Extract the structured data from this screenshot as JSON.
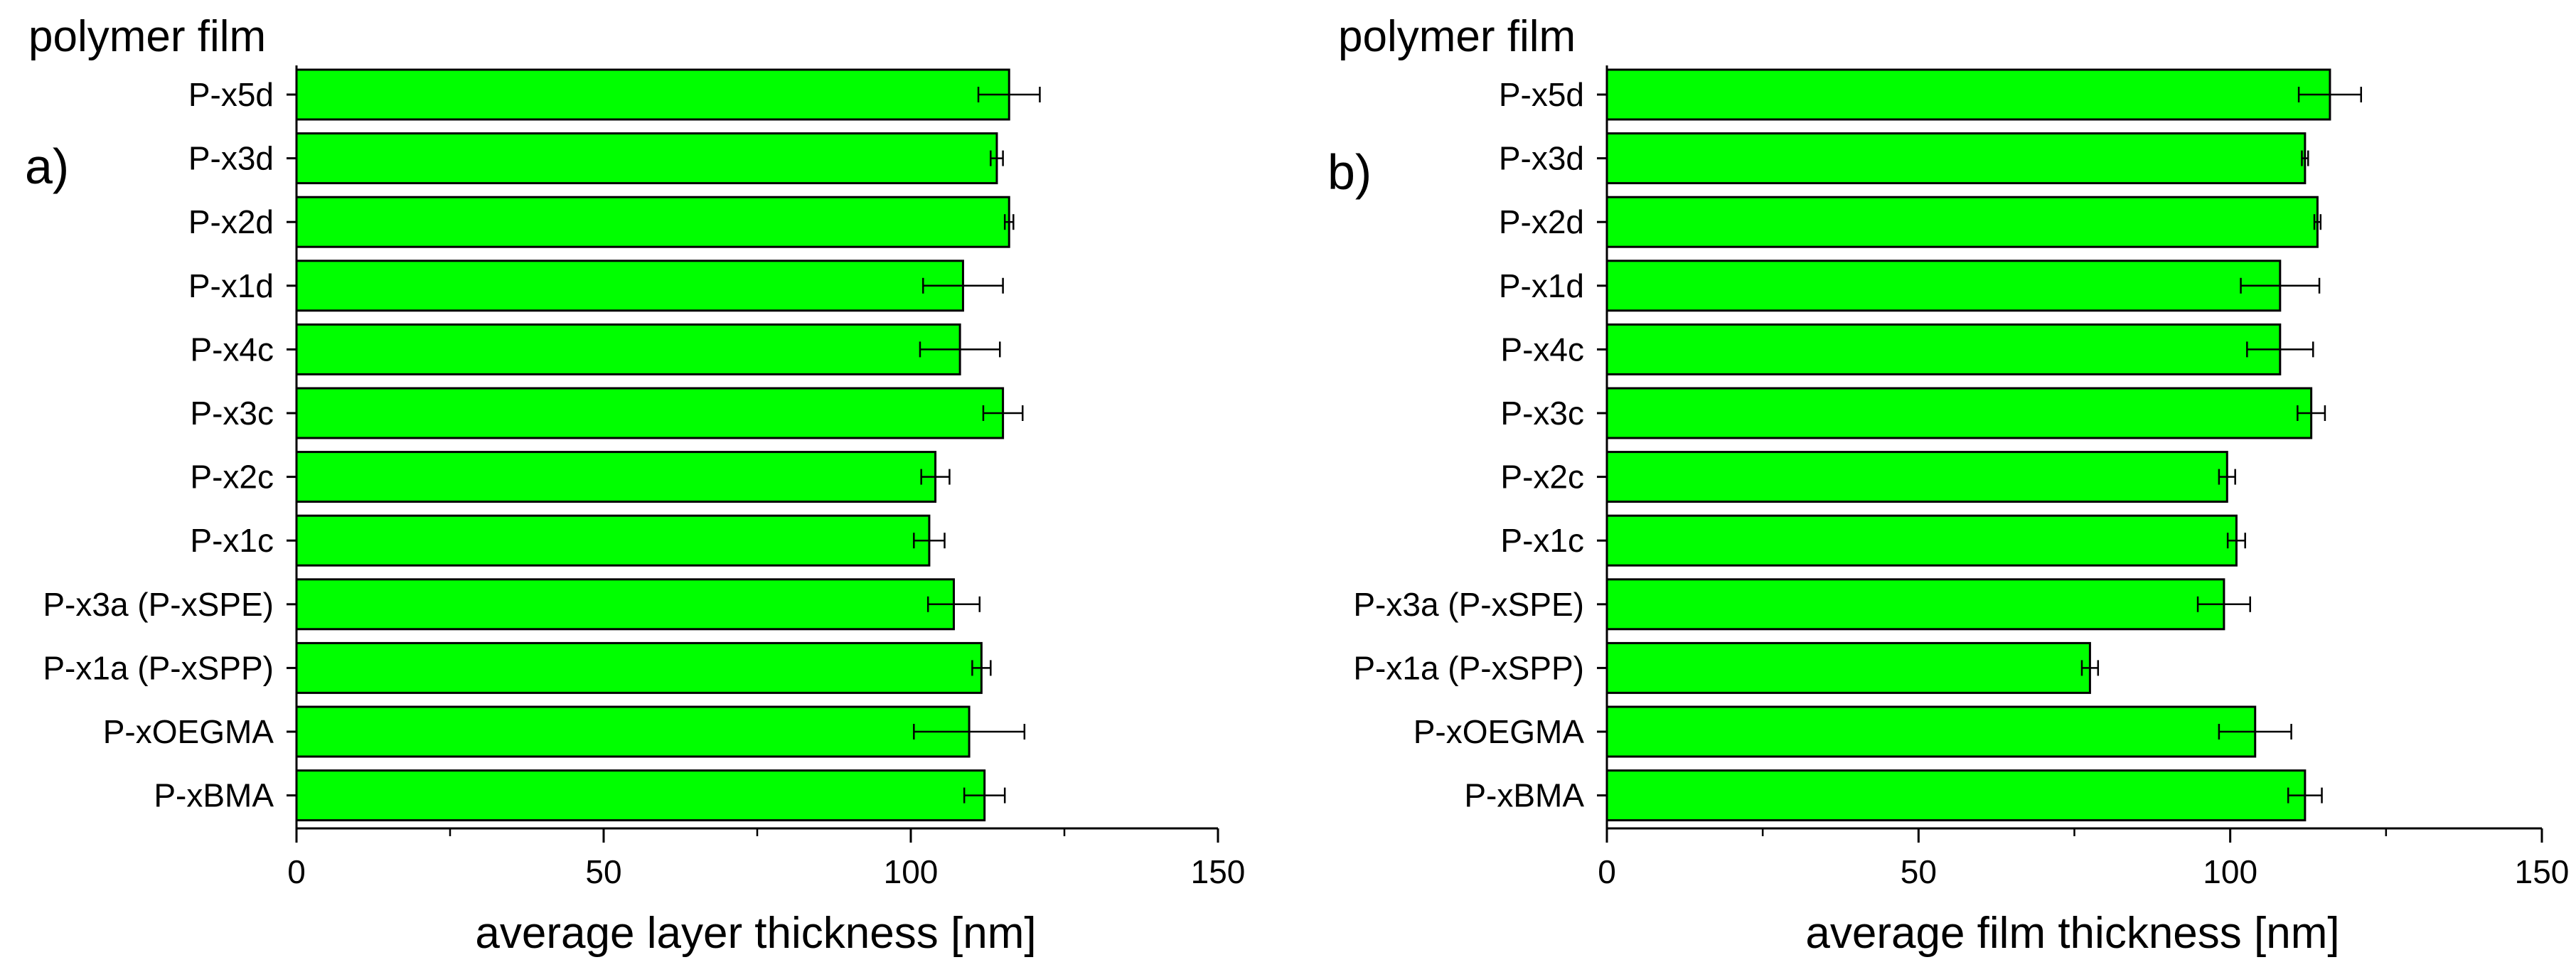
{
  "colors": {
    "bar_fill": "#00ff00",
    "bar_stroke": "#000000",
    "axis": "#000000",
    "background": "#ffffff"
  },
  "chart_data": [
    {
      "type": "bar",
      "orientation": "horizontal",
      "panel_label": "a)",
      "ylabel": "polymer film",
      "xlabel": "average layer thickness [nm]",
      "xlim": [
        0,
        150
      ],
      "xticks": [
        "0",
        "50",
        "100",
        "150"
      ],
      "categories": [
        "P-x5d",
        "P-x3d",
        "P-x2d",
        "P-x1d",
        "P-x4c",
        "P-x3c",
        "P-x2c",
        "P-x1c",
        "P-x3a (P-xSPE)",
        "P-x1a (P-xSPP)",
        "P-xOEGMA",
        "P-xBMA"
      ],
      "values": [
        116,
        114,
        116,
        108.5,
        108,
        115,
        104,
        103,
        107,
        111.5,
        109.5,
        112
      ],
      "errors": [
        5,
        1,
        0.7,
        6.5,
        6.5,
        3.2,
        2.3,
        2.5,
        4.2,
        1.5,
        9,
        3.3
      ]
    },
    {
      "type": "bar",
      "orientation": "horizontal",
      "panel_label": "b)",
      "ylabel": "polymer film",
      "xlabel": "average film thickness [nm]",
      "xlim": [
        0,
        150
      ],
      "xticks": [
        "0",
        "50",
        "100",
        "150"
      ],
      "categories": [
        "P-x5d",
        "P-x3d",
        "P-x2d",
        "P-x1d",
        "P-x4c",
        "P-x3c",
        "P-x2c",
        "P-x1c",
        "P-x3a (P-xSPE)",
        "P-x1a (P-xSPP)",
        "P-xOEGMA",
        "P-xBMA"
      ],
      "values": [
        116,
        112,
        114,
        108,
        108,
        113,
        99.5,
        101,
        99,
        77.5,
        104,
        112
      ],
      "errors": [
        5,
        0.5,
        0.5,
        6.3,
        5.3,
        2.2,
        1.3,
        1.4,
        4.2,
        1.3,
        5.8,
        2.7
      ]
    }
  ]
}
